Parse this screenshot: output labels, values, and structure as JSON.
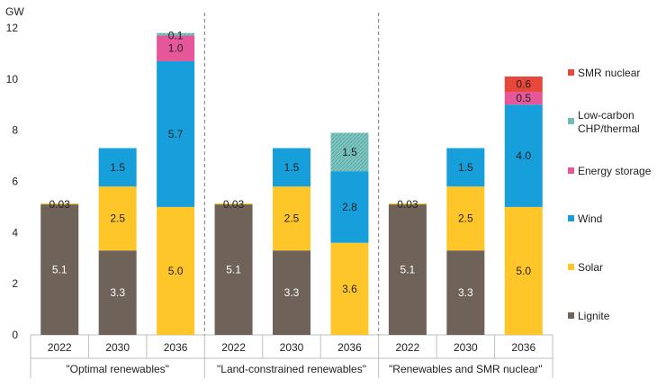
{
  "chart_data": {
    "type": "bar",
    "stacked": true,
    "y_unit": "GW",
    "ylim": [
      0,
      12
    ],
    "yticks": [
      0,
      2,
      4,
      6,
      8,
      10,
      12
    ],
    "grid": false,
    "legend_position": "right",
    "groups": [
      {
        "label": "\"Optimal renewables\"",
        "categories": [
          "2022",
          "2030",
          "2036"
        ]
      },
      {
        "label": "\"Land-constrained renewables\"",
        "categories": [
          "2022",
          "2030",
          "2036"
        ]
      },
      {
        "label": "\"Renewables and SMR nuclear\"",
        "categories": [
          "2022",
          "2030",
          "2036"
        ]
      }
    ],
    "series": [
      {
        "name": "Lignite",
        "color": "#6e6259",
        "label_color": "#ffffff",
        "values": [
          5.1,
          3.3,
          0,
          5.1,
          3.3,
          0,
          5.1,
          3.3,
          0
        ],
        "labels": [
          "5.1",
          "3.3",
          "",
          "5.1",
          "3.3",
          "",
          "5.1",
          "3.3",
          ""
        ]
      },
      {
        "name": "Solar",
        "color": "#ffc629",
        "label_color": "#222222",
        "values": [
          0.03,
          2.5,
          5.0,
          0.03,
          2.5,
          3.6,
          0.03,
          2.5,
          5.0
        ],
        "labels": [
          "0.03",
          "2.5",
          "5.0",
          "0.03",
          "2.5",
          "3.6",
          "0.03",
          "2.5",
          "5.0"
        ]
      },
      {
        "name": "Wind",
        "color": "#179fdb",
        "label_color": "#222222",
        "values": [
          0,
          1.5,
          5.7,
          0,
          1.5,
          2.8,
          0,
          1.5,
          4.0
        ],
        "labels": [
          "",
          "1.5",
          "5.7",
          "",
          "1.5",
          "2.8",
          "",
          "1.5",
          "4.0"
        ]
      },
      {
        "name": "Energy storage",
        "color": "#e6579a",
        "label_color": "#222222",
        "values": [
          0,
          0,
          1.0,
          0,
          0,
          0,
          0,
          0,
          0.5
        ],
        "labels": [
          "",
          "",
          "1.0",
          "",
          "",
          "",
          "",
          "",
          "0.5"
        ]
      },
      {
        "name": "Low-carbon CHP/thermal",
        "color": "#7fc5c2",
        "pattern": "hatched",
        "label_color": "#222222",
        "values": [
          0,
          0,
          0.1,
          0,
          0,
          1.5,
          0,
          0,
          0
        ],
        "labels": [
          "",
          "",
          "0.1",
          "",
          "",
          "1.5",
          "",
          "",
          ""
        ]
      },
      {
        "name": "SMR nuclear",
        "color": "#e8473c",
        "label_color": "#222222",
        "values": [
          0,
          0,
          0,
          0,
          0,
          0,
          0,
          0,
          0.6
        ],
        "labels": [
          "",
          "",
          "",
          "",
          "",
          "",
          "",
          "",
          "0.6"
        ]
      }
    ],
    "legend_order": [
      {
        "series": 5,
        "lines": [
          "SMR nuclear"
        ]
      },
      {
        "series": 4,
        "lines": [
          "Low-carbon",
          "CHP/thermal"
        ]
      },
      {
        "series": 3,
        "lines": [
          "Energy storage"
        ]
      },
      {
        "series": 2,
        "lines": [
          "Wind"
        ]
      },
      {
        "series": 1,
        "lines": [
          "Solar"
        ]
      },
      {
        "series": 0,
        "lines": [
          "Lignite"
        ]
      }
    ]
  }
}
